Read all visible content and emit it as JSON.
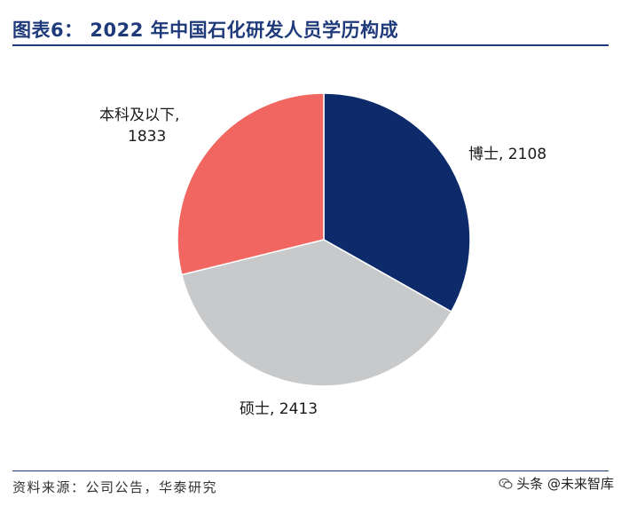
{
  "header": {
    "title": "图表6： 2022 年中国石化研发人员学历构成"
  },
  "footer": {
    "source": "资料来源：公司公告，华泰研究"
  },
  "watermark": {
    "text": "头条 @未来智库",
    "icon": "wechat-icon"
  },
  "colors": {
    "accent": "#1f3a7a",
    "series": [
      "#0d2b6b",
      "#c8c9cb",
      "#f26661"
    ]
  },
  "chart_data": {
    "type": "pie",
    "title": "2022 年中国石化研发人员学历构成",
    "slices": [
      {
        "label": "博士",
        "value": 2108,
        "label_lines": [
          "博士, 2108"
        ],
        "color": "#0d2b6b"
      },
      {
        "label": "硕士",
        "value": 2413,
        "label_lines": [
          "硕士, 2413"
        ],
        "color": "#c8c9cb"
      },
      {
        "label": "本科及以下",
        "value": 1833,
        "label_lines": [
          "本科及以下,",
          "1833"
        ],
        "color": "#f26661"
      }
    ],
    "start_angle": "12 o'clock",
    "direction": "clockwise",
    "legend": "none"
  }
}
